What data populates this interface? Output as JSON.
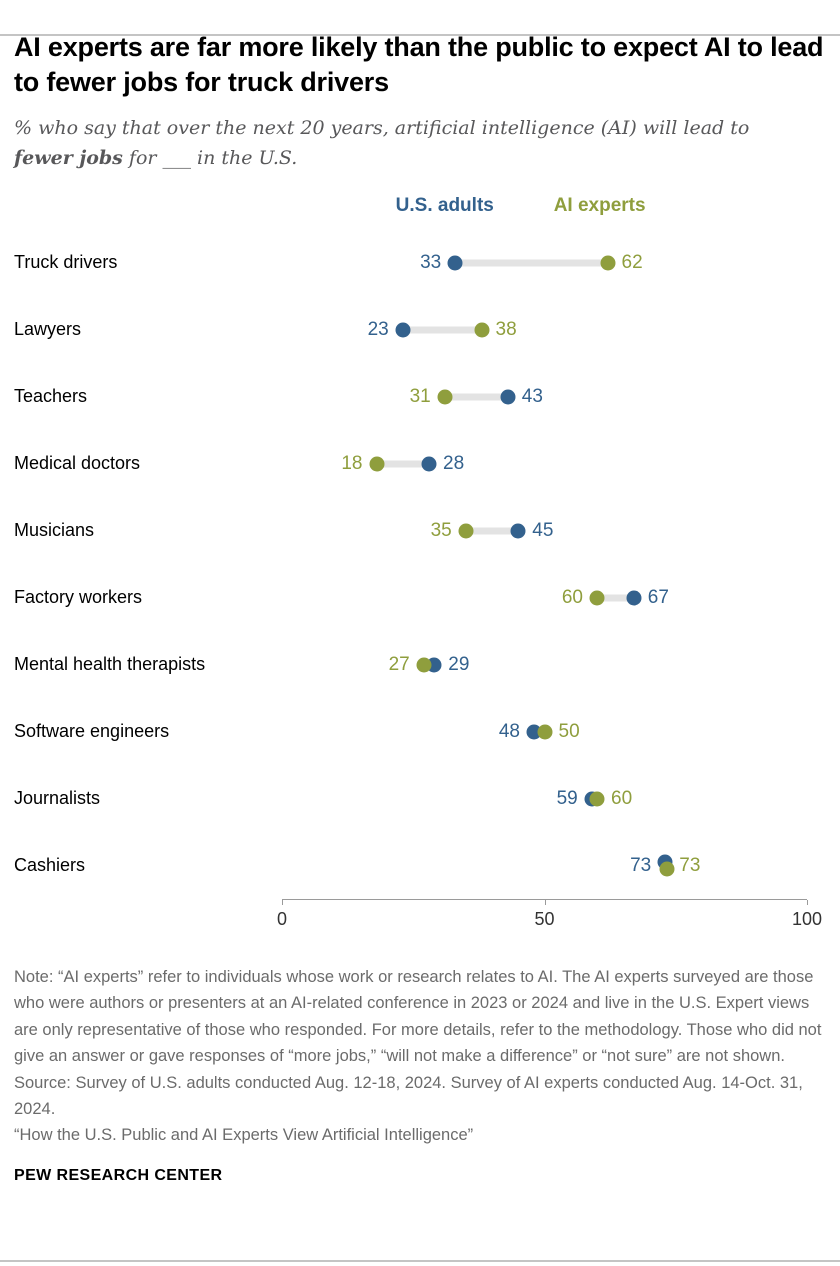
{
  "header": {
    "title": "AI experts are far more likely than the public to expect AI to lead to fewer jobs for truck drivers",
    "subtitle_prefix": "% who say that over the next 20 years, artificial intelligence (AI) will lead to ",
    "subtitle_bold": "fewer jobs",
    "subtitle_suffix": " for ___ in the U.S."
  },
  "chart_data": {
    "type": "dumbbell",
    "categories": [
      "Truck drivers",
      "Lawyers",
      "Teachers",
      "Medical doctors",
      "Musicians",
      "Factory workers",
      "Mental health therapists",
      "Software engineers",
      "Journalists",
      "Cashiers"
    ],
    "series": [
      {
        "name": "U.S. adults",
        "color": "#33618d",
        "values": [
          33,
          23,
          43,
          28,
          45,
          67,
          29,
          48,
          59,
          73
        ]
      },
      {
        "name": "AI experts",
        "color": "#8f9e3d",
        "values": [
          62,
          38,
          31,
          18,
          35,
          60,
          27,
          50,
          60,
          73
        ]
      }
    ],
    "xlim": [
      0,
      100
    ],
    "ticks": [
      0,
      50,
      100
    ],
    "connector_color": "#e3e3e3",
    "legend_position": "top"
  },
  "footer": {
    "note": "Note: “AI experts” refer to individuals whose work or research relates to AI. The AI experts surveyed are those who were authors or presenters at an AI-related conference in 2023 or 2024 and live in the U.S. Expert views are only representative of those who responded. For more details, refer to the methodology. Those who did not give an answer or gave responses of “more jobs,” “will not make a difference” or “not sure” are not shown.",
    "source": "Source: Survey of U.S. adults conducted Aug. 12-18, 2024. Survey of AI experts conducted Aug. 14-Oct. 31, 2024.",
    "report_title": "“How the U.S. Public and AI Experts View Artificial Intelligence”",
    "brand": "PEW RESEARCH CENTER"
  }
}
